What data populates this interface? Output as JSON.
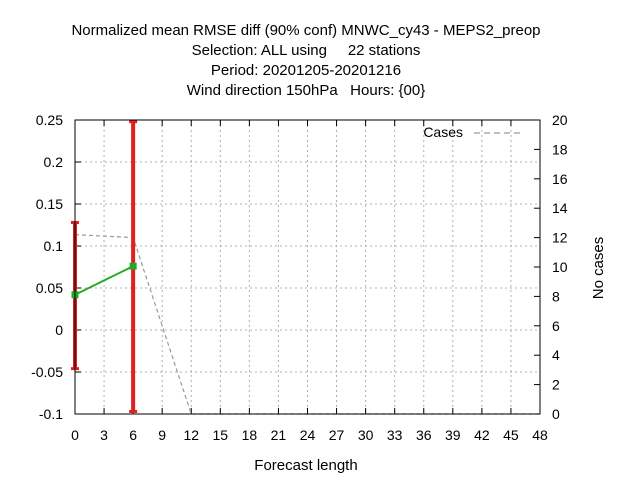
{
  "chart_data": {
    "type": "line",
    "title_lines": [
      "Normalized mean RMSE diff (90% conf) MNWC_cy43 - MEPS2_preop",
      "Selection: ALL using     22 stations",
      "Period: 20201205-20201216",
      "Wind direction 150hPa   Hours: {00}"
    ],
    "xlabel": "Forecast length",
    "ylabel": "",
    "y2label": "No cases",
    "xlim": [
      0,
      48
    ],
    "ylim": [
      -0.1,
      0.25
    ],
    "y2lim": [
      0,
      20
    ],
    "x_ticks": [
      "0",
      "3",
      "6",
      "9",
      "12",
      "15",
      "18",
      "21",
      "24",
      "27",
      "30",
      "33",
      "36",
      "39",
      "42",
      "45",
      "48"
    ],
    "y_ticks": [
      "-0.1",
      "-0.05",
      "0",
      "0.05",
      "0.1",
      "0.15",
      "0.2",
      "0.25"
    ],
    "y2_ticks": [
      "0",
      "2",
      "4",
      "6",
      "8",
      "10",
      "12",
      "14",
      "16",
      "18",
      "20"
    ],
    "grid": true,
    "legend_position": "top-right",
    "series": [
      {
        "name": "",
        "axis": "left",
        "color": "#22aa22",
        "x": [
          0,
          6
        ],
        "y": [
          0.042,
          0.076
        ]
      },
      {
        "name": "Cases",
        "axis": "right",
        "color": "#999999",
        "dash": true,
        "x": [
          0,
          6,
          12,
          48
        ],
        "y": [
          12.2,
          12.0,
          0,
          0
        ]
      }
    ],
    "error_bars": {
      "color": "#e02020",
      "x": [
        0,
        6
      ],
      "low": [
        -0.046,
        -0.097
      ],
      "high": [
        0.128,
        0.248
      ]
    }
  }
}
